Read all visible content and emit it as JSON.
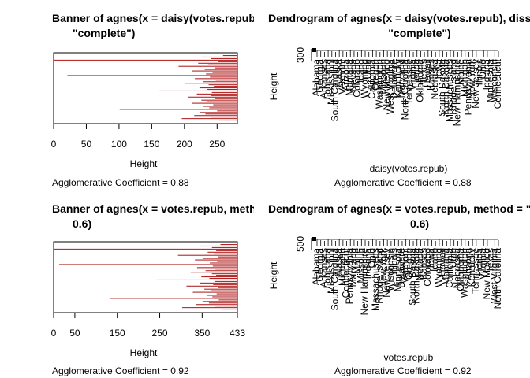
{
  "chart_data": [
    {
      "type": "banner",
      "title_line1": "Banner of  agnes(x = daisy(votes.repub), diss = TRUE, method =",
      "title_line2": "\"complete\")",
      "xlabel": "Height",
      "xticks": [
        "0",
        "50",
        "100",
        "150",
        "200",
        "250"
      ],
      "xlim": [
        0,
        281
      ],
      "coef_text": "Agglomerative Coefficient =  0.88",
      "bar_color": "#b22222",
      "bar_heights": [
        22,
        55,
        40,
        280,
        30,
        60,
        45,
        90,
        35,
        50,
        70,
        38,
        48,
        260,
        42,
        65,
        33,
        52,
        80,
        44,
        36,
        58,
        47,
        120,
        39,
        62,
        41,
        75,
        34,
        55,
        46,
        69,
        37,
        53,
        43,
        180,
        31,
        57,
        49,
        66,
        40,
        85,
        28
      ]
    },
    {
      "type": "dendrogram",
      "title_line1": "Dendrogram of  agnes(x = daisy(votes.repub), diss = TRUE,",
      "title_line2": "\"complete\")",
      "ylabel": "Height",
      "xlabel": "daisy(votes.repub)",
      "ytick": "300",
      "coef_text": "Agglomerative Coefficient =  0.88",
      "leaves": [
        "Alabama",
        "Georgia",
        "Arkansas",
        "Louisiana",
        "Mississippi",
        "South Carolina",
        "Alaska",
        "Vermont",
        "Arizona",
        "Montana",
        "Nevada",
        "Colorado",
        "Idaho",
        "Wyoming",
        "Utah",
        "California",
        "Oregon",
        "Washington",
        "Missouri",
        "New Mexico",
        "West Virginia",
        "Delaware",
        "Kentucky",
        "Maryland",
        "North Carolina",
        "Tennessee",
        "Virginia",
        "Florida",
        "Oklahoma",
        "Texas",
        "Hawaii",
        "Kansas",
        "Nebraska",
        "Iowa",
        "South Dakota",
        "North Dakota",
        "Massachusetts",
        "Rhode Island",
        "New Hampshire",
        "Maine",
        "Michigan",
        "Pennsylvania",
        "New York",
        "New Jersey",
        "Illinois",
        "Ohio",
        "Indiana",
        "Minnesota",
        "Wisconsin",
        "Connecticut"
      ]
    },
    {
      "type": "banner",
      "title_line1": "Banner of  agnes(x = votes.repub, method = \"flexible\", par.method =",
      "title_line2": "0.6)",
      "xlabel": "Height",
      "xticks": [
        "0",
        "50",
        "150",
        "250",
        "350",
        "433"
      ],
      "xlim": [
        0,
        433
      ],
      "coef_text": "Agglomerative Coefficient =  0.92",
      "bar_color": "#b22222",
      "bar_heights": [
        40,
        90,
        60,
        433,
        50,
        70,
        55,
        140,
        45,
        80,
        100,
        48,
        65,
        420,
        58,
        95,
        52,
        75,
        110,
        60,
        50,
        85,
        66,
        190,
        54,
        88,
        57,
        120,
        46,
        78,
        63,
        105,
        49,
        72,
        59,
        300,
        44,
        82,
        67,
        98,
        52,
        130,
        38
      ]
    },
    {
      "type": "dendrogram",
      "title_line1": "Dendrogram of  agnes(x = votes.repub, method = \"flexible\", par.method =",
      "title_line2": "0.6)",
      "ylabel": "Height",
      "xlabel": "votes.repub",
      "ytick": "500",
      "coef_text": "Agglomerative Coefficient =  0.92",
      "leaves": [
        "Alabama",
        "Georgia",
        "Arkansas",
        "Louisiana",
        "Mississippi",
        "South Carolina",
        "Alaska",
        "Michigan",
        "Connecticut",
        "Pennsylvania",
        "Maryland",
        "Maine",
        "Missouri",
        "New Hampshire",
        "Indiana",
        "Ohio",
        "Massachusetts",
        "Rhode Island",
        "New York",
        "New Jersey",
        "Wisconsin",
        "Illinois",
        "Minnesota",
        "Delaware",
        "Vermont",
        "Oregon",
        "South Dakota",
        "North Dakota",
        "Nevada",
        "Kansas",
        "Colorado",
        "Iowa",
        "Idaho",
        "Wyoming",
        "Hawaii",
        "Montana",
        "California",
        "Utah",
        "Nebraska",
        "Oklahoma",
        "Washington",
        "Arizona",
        "Kentucky",
        "Tennessee",
        "Florida",
        "Virginia",
        "New Mexico",
        "Texas",
        "West Virginia",
        "North Carolina"
      ]
    }
  ]
}
